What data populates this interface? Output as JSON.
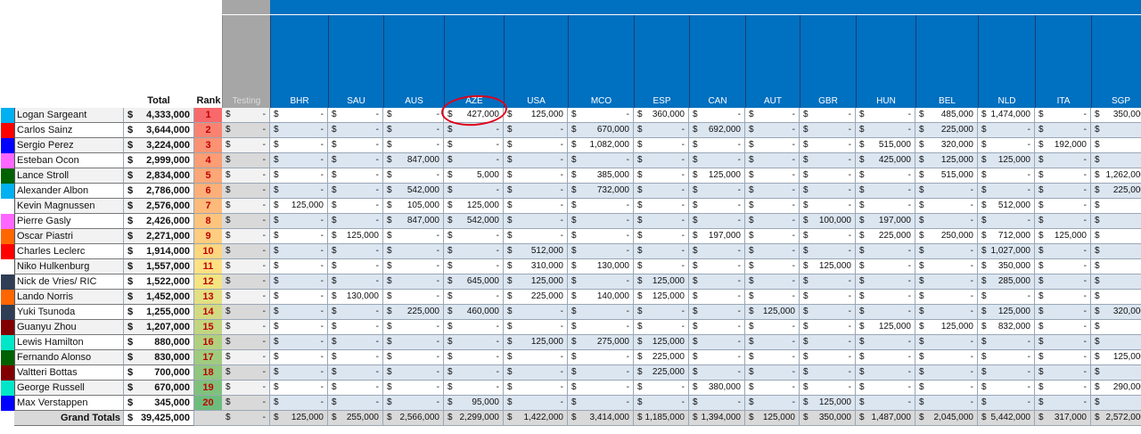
{
  "headers": {
    "total": "Total",
    "rank": "Rank",
    "testing": "Testing"
  },
  "races": [
    "BHR",
    "SAU",
    "AUS",
    "AZE",
    "USA",
    "MCO",
    "ESP",
    "CAN",
    "AUT",
    "GBR",
    "HUN",
    "BEL",
    "NLD",
    "ITA",
    "SGP"
  ],
  "drivers": [
    {
      "name": "Logan Sargeant",
      "total": "4,333,000",
      "rank": "1",
      "color": "#00b0f0",
      "rankBg": "#f8696b",
      "values": [
        "-",
        "-",
        "-",
        "427,000",
        "125,000",
        "-",
        "360,000",
        "-",
        "-",
        "-",
        "-",
        "485,000",
        "1,474,000",
        "-",
        "350,000"
      ]
    },
    {
      "name": "Carlos Sainz",
      "total": "3,644,000",
      "rank": "2",
      "color": "#ff0000",
      "rankBg": "#f98370",
      "values": [
        "-",
        "-",
        "-",
        "-",
        "-",
        "670,000",
        "-",
        "692,000",
        "-",
        "-",
        "-",
        "225,000",
        "-",
        "-",
        "-"
      ]
    },
    {
      "name": "Sergio Perez",
      "total": "3,224,000",
      "rank": "3",
      "color": "#0000ff",
      "rankBg": "#fa9273",
      "values": [
        "-",
        "-",
        "-",
        "-",
        "-",
        "1,082,000",
        "-",
        "-",
        "-",
        "-",
        "515,000",
        "320,000",
        "-",
        "192,000",
        "-"
      ]
    },
    {
      "name": "Esteban Ocon",
      "total": "2,999,000",
      "rank": "4",
      "color": "#ff66ff",
      "rankBg": "#fb9d75",
      "values": [
        "-",
        "-",
        "847,000",
        "-",
        "-",
        "-",
        "-",
        "-",
        "-",
        "-",
        "425,000",
        "125,000",
        "125,000",
        "-",
        "-"
      ]
    },
    {
      "name": "Lance Stroll",
      "total": "2,834,000",
      "rank": "5",
      "color": "#006100",
      "rankBg": "#fca777",
      "values": [
        "-",
        "-",
        "-",
        "5,000",
        "-",
        "385,000",
        "-",
        "125,000",
        "-",
        "-",
        "-",
        "515,000",
        "-",
        "-",
        "1,262,000"
      ]
    },
    {
      "name": "Alexander Albon",
      "total": "2,786,000",
      "rank": "6",
      "color": "#00b0f0",
      "rankBg": "#fcb079",
      "values": [
        "-",
        "-",
        "542,000",
        "-",
        "-",
        "732,000",
        "-",
        "-",
        "-",
        "-",
        "-",
        "-",
        "-",
        "-",
        "225,000"
      ]
    },
    {
      "name": "Kevin Magnussen",
      "total": "2,576,000",
      "rank": "7",
      "color": "#ffffff",
      "rankBg": "#fdba7b",
      "values": [
        "125,000",
        "-",
        "105,000",
        "125,000",
        "-",
        "-",
        "-",
        "-",
        "-",
        "-",
        "-",
        "-",
        "512,000",
        "-",
        "-"
      ]
    },
    {
      "name": "Pierre Gasly",
      "total": "2,426,000",
      "rank": "8",
      "color": "#ff66ff",
      "rankBg": "#fdc47d",
      "values": [
        "-",
        "-",
        "847,000",
        "542,000",
        "-",
        "-",
        "-",
        "-",
        "-",
        "100,000",
        "197,000",
        "-",
        "-",
        "-",
        "-"
      ]
    },
    {
      "name": "Oscar Piastri",
      "total": "2,271,000",
      "rank": "9",
      "color": "#ff6600",
      "rankBg": "#fecd7f",
      "values": [
        "-",
        "125,000",
        "-",
        "-",
        "-",
        "-",
        "-",
        "197,000",
        "-",
        "-",
        "225,000",
        "250,000",
        "712,000",
        "125,000",
        "-"
      ]
    },
    {
      "name": "Charles Leclerc",
      "total": "1,914,000",
      "rank": "10",
      "color": "#ff0000",
      "rankBg": "#fed680",
      "values": [
        "-",
        "-",
        "-",
        "-",
        "512,000",
        "-",
        "-",
        "-",
        "-",
        "-",
        "-",
        "-",
        "1,027,000",
        "-",
        "-"
      ]
    },
    {
      "name": "Niko Hulkenburg",
      "total": "1,557,000",
      "rank": "11",
      "color": "#ffffff",
      "rankBg": "#ffe083",
      "values": [
        "-",
        "-",
        "-",
        "-",
        "310,000",
        "130,000",
        "-",
        "-",
        "-",
        "125,000",
        "-",
        "-",
        "350,000",
        "-",
        "-"
      ]
    },
    {
      "name": "Nick de Vries/ RIC",
      "total": "1,522,000",
      "rank": "12",
      "color": "#2f3d55",
      "rankBg": "#f4e482",
      "values": [
        "-",
        "-",
        "-",
        "645,000",
        "125,000",
        "-",
        "125,000",
        "-",
        "-",
        "-",
        "-",
        "-",
        "285,000",
        "-",
        "-"
      ]
    },
    {
      "name": "Lando Norris",
      "total": "1,452,000",
      "rank": "13",
      "color": "#ff6600",
      "rankBg": "#e3df82",
      "values": [
        "-",
        "130,000",
        "-",
        "-",
        "225,000",
        "140,000",
        "125,000",
        "-",
        "-",
        "-",
        "-",
        "-",
        "-",
        "-",
        "-"
      ]
    },
    {
      "name": "Yuki Tsunoda",
      "total": "1,255,000",
      "rank": "14",
      "color": "#2f3d55",
      "rankBg": "#d3da81",
      "values": [
        "-",
        "-",
        "225,000",
        "460,000",
        "-",
        "-",
        "-",
        "-",
        "125,000",
        "-",
        "-",
        "-",
        "125,000",
        "-",
        "320,000"
      ]
    },
    {
      "name": "Guanyu Zhou",
      "total": "1,207,000",
      "rank": "15",
      "color": "#800000",
      "rankBg": "#c2d580",
      "values": [
        "-",
        "-",
        "-",
        "-",
        "-",
        "-",
        "-",
        "-",
        "-",
        "-",
        "125,000",
        "125,000",
        "832,000",
        "-",
        "-"
      ]
    },
    {
      "name": "Lewis Hamilton",
      "total": "880,000",
      "rank": "16",
      "color": "#00e6c8",
      "rankBg": "#b1d07f",
      "values": [
        "-",
        "-",
        "-",
        "-",
        "125,000",
        "275,000",
        "125,000",
        "-",
        "-",
        "-",
        "-",
        "-",
        "-",
        "-",
        "-"
      ]
    },
    {
      "name": "Fernando Alonso",
      "total": "830,000",
      "rank": "17",
      "color": "#006100",
      "rankBg": "#a0cb7e",
      "values": [
        "-",
        "-",
        "-",
        "-",
        "-",
        "-",
        "225,000",
        "-",
        "-",
        "-",
        "-",
        "-",
        "-",
        "-",
        "125,000"
      ]
    },
    {
      "name": "Valtteri Bottas",
      "total": "700,000",
      "rank": "18",
      "color": "#800000",
      "rankBg": "#90c67d",
      "values": [
        "-",
        "-",
        "-",
        "-",
        "-",
        "-",
        "225,000",
        "-",
        "-",
        "-",
        "-",
        "-",
        "-",
        "-",
        "-"
      ]
    },
    {
      "name": "George Russell",
      "total": "670,000",
      "rank": "19",
      "color": "#00e6c8",
      "rankBg": "#7fc17c",
      "values": [
        "-",
        "-",
        "-",
        "-",
        "-",
        "-",
        "-",
        "380,000",
        "-",
        "-",
        "-",
        "-",
        "-",
        "-",
        "290,000"
      ]
    },
    {
      "name": "Max Verstappen",
      "total": "345,000",
      "rank": "20",
      "color": "#0000ff",
      "rankBg": "#6ebc7b",
      "values": [
        "-",
        "-",
        "-",
        "95,000",
        "-",
        "-",
        "-",
        "-",
        "-",
        "125,000",
        "-",
        "-",
        "-",
        "-",
        "-"
      ]
    }
  ],
  "grand": {
    "label": "Grand Totals",
    "total": "39,425,000",
    "values": [
      "125,000",
      "255,000",
      "2,566,000",
      "2,299,000",
      "1,422,000",
      "3,414,000",
      "1,185,000",
      "1,394,000",
      "125,000",
      "350,000",
      "1,487,000",
      "2,045,000",
      "5,442,000",
      "317,000",
      "2,572,000"
    ]
  },
  "currency": "$",
  "empty": "-"
}
